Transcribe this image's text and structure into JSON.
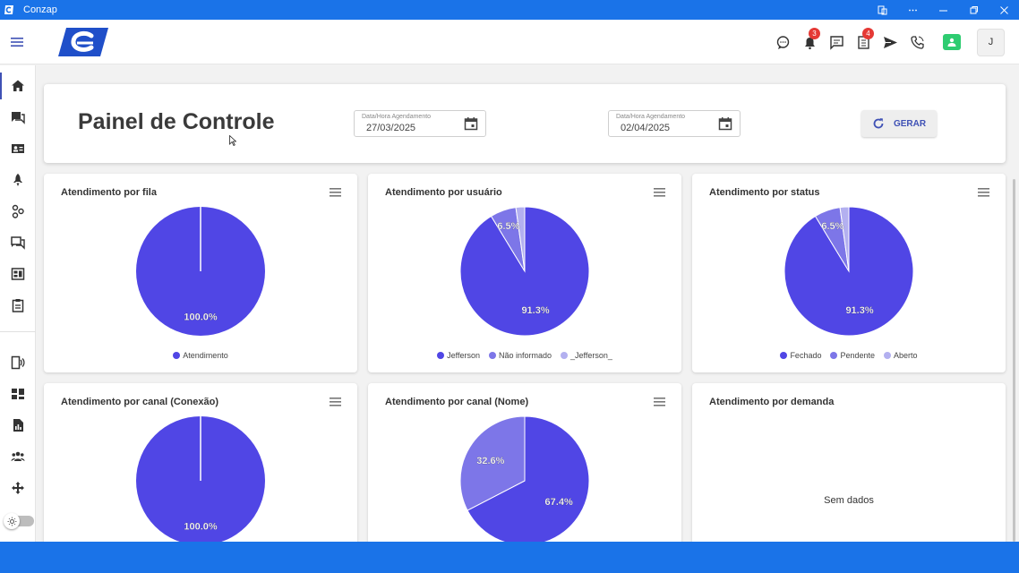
{
  "window": {
    "title": "Conzap"
  },
  "header": {
    "notifications_badge": "3",
    "tasks_badge": "4",
    "avatar_initial": "J"
  },
  "control_panel": {
    "title": "Painel de Controle",
    "date_start": {
      "label": "Data/Hora Agendamento",
      "value": "27/03/2025"
    },
    "date_end": {
      "label": "Data/Hora Agendamento",
      "value": "02/04/2025"
    },
    "generate_label": "GERAR"
  },
  "colors": {
    "primary": "#3f51b5",
    "slice_1": "#5046e5",
    "slice_2": "#7d76e8",
    "slice_3": "#b3b0f0",
    "titlebar": "#1a73e8"
  },
  "chart_data": [
    {
      "type": "pie",
      "title": "Atendimento por fila",
      "categories": [
        "Atendimento"
      ],
      "values": [
        100.0
      ],
      "labels": [
        "100.0%"
      ]
    },
    {
      "type": "pie",
      "title": "Atendimento por usuário",
      "categories": [
        "Jefferson",
        "Não informado",
        "_Jefferson_"
      ],
      "values": [
        91.3,
        6.5,
        2.2
      ],
      "labels": [
        "91.3%",
        "6.5%",
        ""
      ]
    },
    {
      "type": "pie",
      "title": "Atendimento por status",
      "categories": [
        "Fechado",
        "Pendente",
        "Aberto"
      ],
      "values": [
        91.3,
        6.5,
        2.2
      ],
      "labels": [
        "91.3%",
        "6.5%",
        ""
      ]
    },
    {
      "type": "pie",
      "title": "Atendimento por canal (Conexão)",
      "categories": [],
      "values": [
        100.0
      ],
      "labels": [
        "100.0%"
      ]
    },
    {
      "type": "pie",
      "title": "Atendimento por canal (Nome)",
      "categories": [],
      "values": [
        67.4,
        32.6
      ],
      "labels": [
        "67.4%",
        "32.6%"
      ]
    },
    {
      "type": "pie",
      "title": "Atendimento por demanda",
      "categories": [],
      "values": [],
      "labels": [],
      "empty_text": "Sem dados"
    }
  ]
}
